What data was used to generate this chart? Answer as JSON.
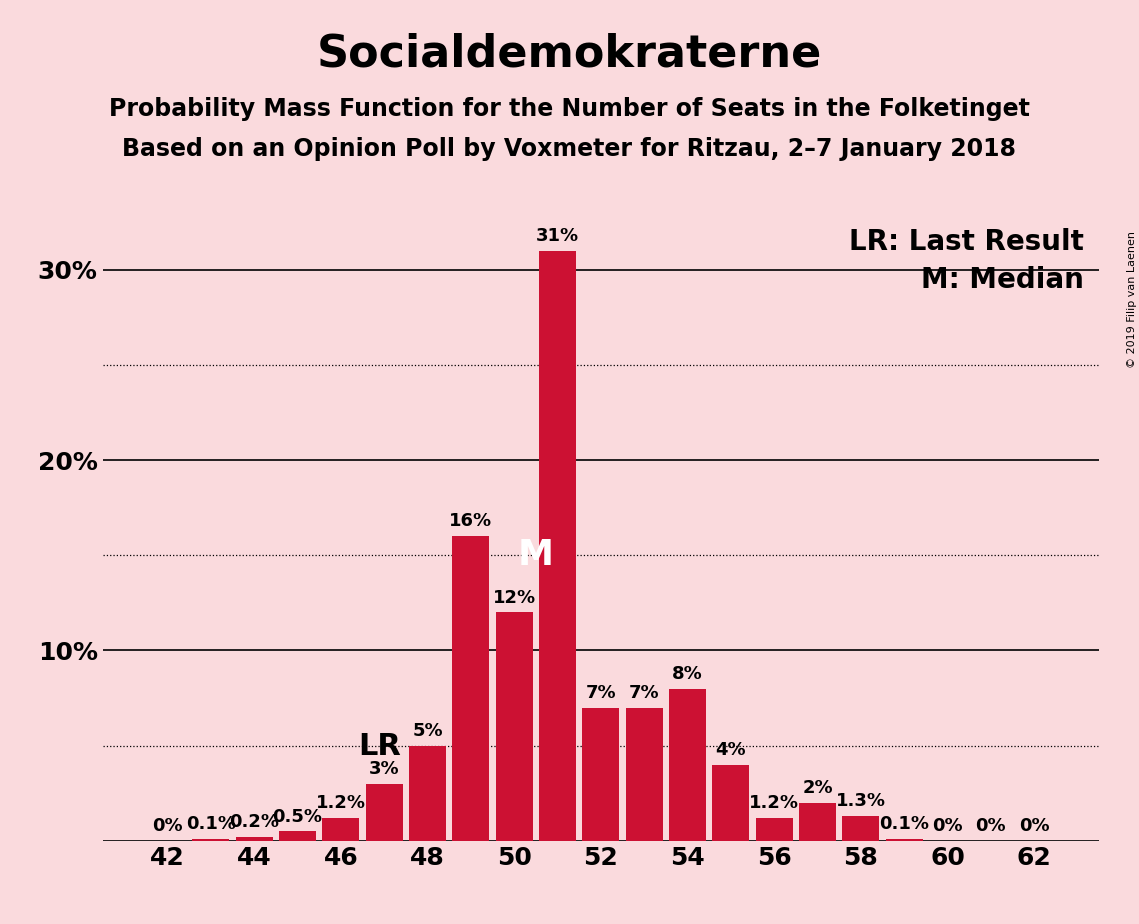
{
  "title": "Socialdemokraterne",
  "subtitle1": "Probability Mass Function for the Number of Seats in the Folketinget",
  "subtitle2": "Based on an Opinion Poll by Voxmeter for Ritzau, 2–7 January 2018",
  "background_color": "#FADADD",
  "bar_color": "#CC1133",
  "seats": [
    42,
    43,
    44,
    45,
    46,
    47,
    48,
    49,
    50,
    51,
    52,
    53,
    54,
    55,
    56,
    57,
    58,
    59,
    60,
    61,
    62
  ],
  "probabilities": [
    0.0,
    0.1,
    0.2,
    0.5,
    1.2,
    3.0,
    5.0,
    16.0,
    12.0,
    31.0,
    7.0,
    7.0,
    8.0,
    4.0,
    1.2,
    2.0,
    1.3,
    0.1,
    0.0,
    0.0,
    0.0
  ],
  "labels": [
    "0%",
    "0.1%",
    "0.2%",
    "0.5%",
    "1.2%",
    "3%",
    "5%",
    "16%",
    "12%",
    "31%",
    "7%",
    "7%",
    "8%",
    "4%",
    "1.2%",
    "2%",
    "1.3%",
    "0.1%",
    "0%",
    "0%",
    "0%"
  ],
  "last_result_seat": 47,
  "median_seat": 51,
  "ylim_max": 33,
  "solid_yticks": [
    0,
    10,
    20,
    30
  ],
  "dotted_yticks": [
    5,
    15,
    25
  ],
  "xtick_positions": [
    42,
    44,
    46,
    48,
    50,
    52,
    54,
    56,
    58,
    60,
    62
  ],
  "copyright_text": "© 2019 Filip van Laenen",
  "title_fontsize": 32,
  "subtitle_fontsize": 17,
  "axis_fontsize": 18,
  "label_fontsize": 13,
  "annotation_fontsize": 20,
  "lr_label_fontsize": 22,
  "m_label_fontsize": 26
}
